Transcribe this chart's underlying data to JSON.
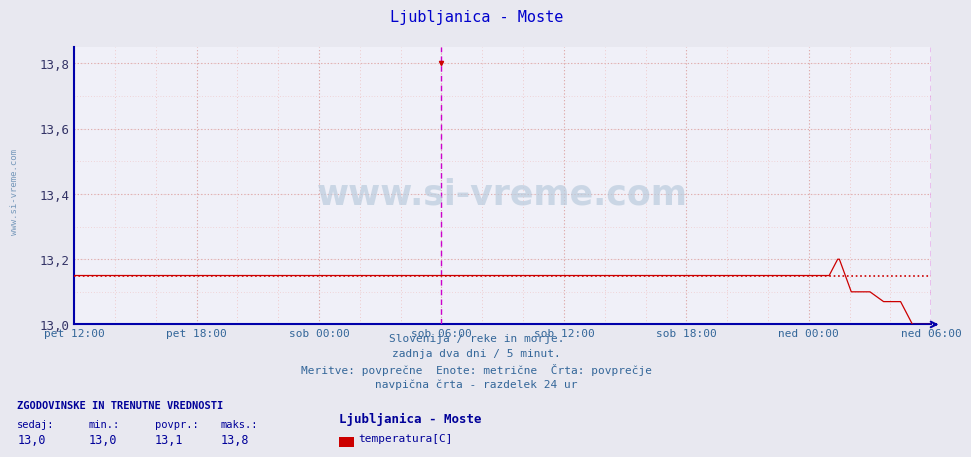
{
  "title": "Ljubljanica - Moste",
  "title_color": "#0000cc",
  "bg_color": "#e8e8f0",
  "plot_bg_color": "#f0f0f8",
  "ylim": [
    13.0,
    13.85
  ],
  "yticks": [
    13.0,
    13.2,
    13.4,
    13.6,
    13.8
  ],
  "ytick_labels": [
    "13,0",
    "13,2",
    "13,4",
    "13,6",
    "13,8"
  ],
  "xtick_labels": [
    "pet 12:00",
    "pet 18:00",
    "sob 00:00",
    "sob 06:00",
    "sob 12:00",
    "sob 18:00",
    "ned 00:00",
    "ned 06:00"
  ],
  "xtick_hours": [
    0,
    6,
    12,
    18,
    24,
    30,
    36,
    42
  ],
  "total_hours": 42,
  "line_color": "#cc0000",
  "avg_value": 13.15,
  "avg_line_color": "#cc0000",
  "vline_color": "#cc00cc",
  "vline_hours": [
    18,
    42
  ],
  "grid_major_color": "#ddaaaa",
  "grid_minor_color": "#eebbbb",
  "axis_color": "#0000aa",
  "text_color": "#336699",
  "footer_lines": [
    "Slovenija / reke in morje.",
    "zadnja dva dni / 5 minut.",
    "Meritve: povprečne  Enote: metrične  Črta: povprečje",
    "navpična črta - razdelek 24 ur"
  ],
  "stats_header": "ZGODOVINSKE IN TRENUTNE VREDNOSTI",
  "stats_color": "#000099",
  "stats_labels": [
    "sedaj:",
    "min.:",
    "povpr.:",
    "maks.:"
  ],
  "stats_values": [
    "13,0",
    "13,0",
    "13,1",
    "13,8"
  ],
  "legend_station": "Ljubljanica - Moste",
  "legend_label": "temperatura[C]",
  "legend_color": "#cc0000",
  "watermark": "www.si-vreme.com",
  "ylabel_text": "www.si-vreme.com"
}
